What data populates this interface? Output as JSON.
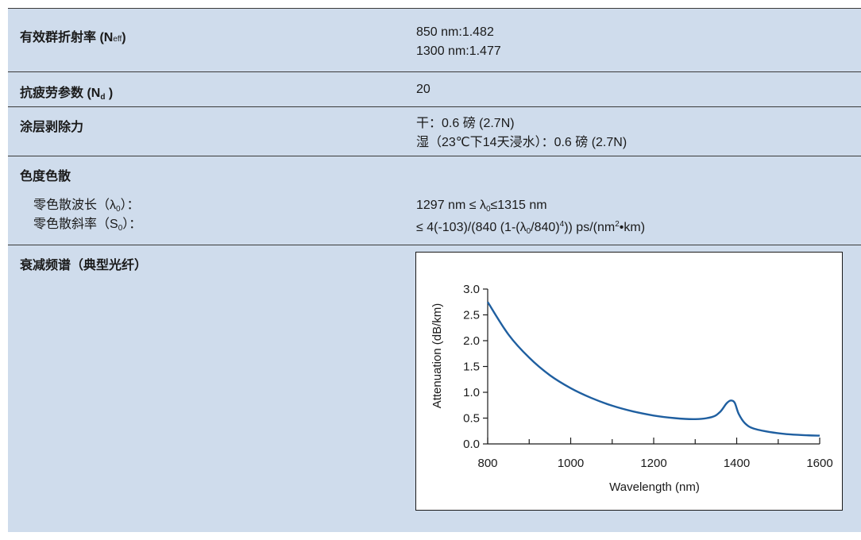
{
  "rows": {
    "neff": {
      "label_main": "有效群折射率 (N",
      "label_sub": "eff",
      "label_close": ")",
      "values": [
        "850 nm:1.482",
        "1300 nm:1.477"
      ]
    },
    "nd": {
      "label_main": "抗疲劳参数 (N",
      "label_sub": "d",
      "label_close": " )",
      "value": "20"
    },
    "strip": {
      "label": "涂层剥除力",
      "values": [
        "干：0.6 磅 (2.7N)",
        "湿（23℃下14天浸水）：0.6 磅 (2.7N)"
      ]
    },
    "dispersion": {
      "label": "色度色散",
      "zero_wavelength_label_a": "零色散波长（λ",
      "zero_wavelength_label_sub": "0",
      "zero_wavelength_label_b": "）：",
      "zero_slope_label_a": "零色散斜率（S",
      "zero_slope_label_sub": "0",
      "zero_slope_label_b": "）：",
      "zero_wavelength_value_a": "1297 nm ≤ λ",
      "zero_wavelength_value_sub": "0",
      "zero_wavelength_value_b": "≤1315 nm",
      "zero_slope_value_a": "≤ 4(-103)/(840 (1-(λ",
      "zero_slope_value_sub": "0",
      "zero_slope_value_b": "/840)",
      "zero_slope_value_sup": "4",
      "zero_slope_value_c": ")) ps/(nm",
      "zero_slope_value_sup2": "2",
      "zero_slope_value_d": "•km)"
    },
    "spectrum": {
      "label": "衰减频谱（典型光纤）"
    }
  },
  "colors": {
    "table_bg": "#cfdcec",
    "curve": "#1f5fa0"
  },
  "chart_data": {
    "type": "line",
    "xlabel": "Wavelength (nm)",
    "ylabel": "Attenuation (dB/km)",
    "xlim": [
      800,
      1600
    ],
    "ylim": [
      0,
      3.0
    ],
    "x_ticks": [
      "800",
      "1000",
      "1200",
      "1400",
      "1600"
    ],
    "y_ticks": [
      "0.0",
      "0.5",
      "1.0",
      "1.5",
      "2.0",
      "2.5",
      "3.0"
    ],
    "x": [
      800,
      850,
      900,
      950,
      1000,
      1050,
      1100,
      1150,
      1200,
      1250,
      1300,
      1340,
      1360,
      1375,
      1385,
      1395,
      1405,
      1420,
      1440,
      1480,
      1520,
      1560,
      1600
    ],
    "y": [
      2.75,
      2.12,
      1.67,
      1.33,
      1.08,
      0.89,
      0.74,
      0.63,
      0.55,
      0.5,
      0.48,
      0.52,
      0.62,
      0.78,
      0.84,
      0.8,
      0.58,
      0.4,
      0.3,
      0.23,
      0.19,
      0.17,
      0.16
    ],
    "grid": false
  }
}
